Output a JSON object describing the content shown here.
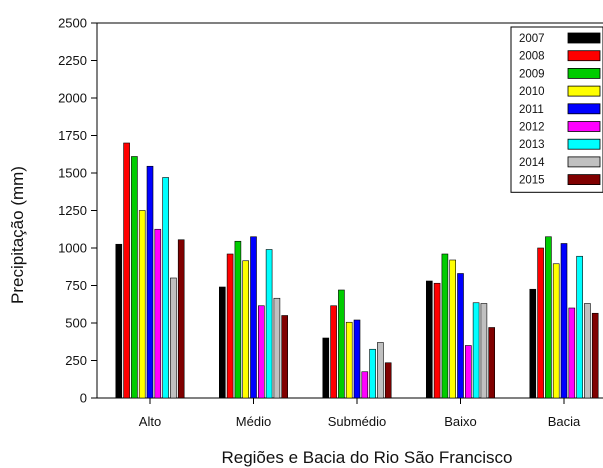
{
  "chart_data": {
    "type": "bar",
    "title": "",
    "xlabel": "Regiões e Bacia do Rio São Francisco",
    "ylabel": "Precipitação (mm)",
    "ylim": [
      0,
      2500
    ],
    "yticks": [
      0,
      250,
      500,
      750,
      1000,
      1250,
      1500,
      1750,
      2000,
      2250,
      2500
    ],
    "grid": false,
    "legend_position": "top-right",
    "categories": [
      "Alto",
      "Médio",
      "Submédio",
      "Baixo",
      "Bacia"
    ],
    "series": [
      {
        "name": "2007",
        "color": "#000000",
        "values": [
          1025,
          740,
          400,
          780,
          725
        ]
      },
      {
        "name": "2008",
        "color": "#ff0000",
        "values": [
          1700,
          960,
          615,
          765,
          1000
        ]
      },
      {
        "name": "2009",
        "color": "#00cc00",
        "values": [
          1610,
          1045,
          720,
          960,
          1075
        ]
      },
      {
        "name": "2010",
        "color": "#ffff00",
        "values": [
          1250,
          915,
          505,
          920,
          895
        ]
      },
      {
        "name": "2011",
        "color": "#0000ff",
        "values": [
          1545,
          1075,
          520,
          830,
          1030
        ]
      },
      {
        "name": "2012",
        "color": "#ff00ff",
        "values": [
          1125,
          615,
          175,
          350,
          600
        ]
      },
      {
        "name": "2013",
        "color": "#00ffff",
        "values": [
          1470,
          990,
          325,
          635,
          945
        ]
      },
      {
        "name": "2014",
        "color": "#c0c0c0",
        "values": [
          800,
          665,
          370,
          630,
          630
        ]
      },
      {
        "name": "2015",
        "color": "#800000",
        "values": [
          1055,
          550,
          235,
          470,
          565
        ]
      }
    ]
  }
}
